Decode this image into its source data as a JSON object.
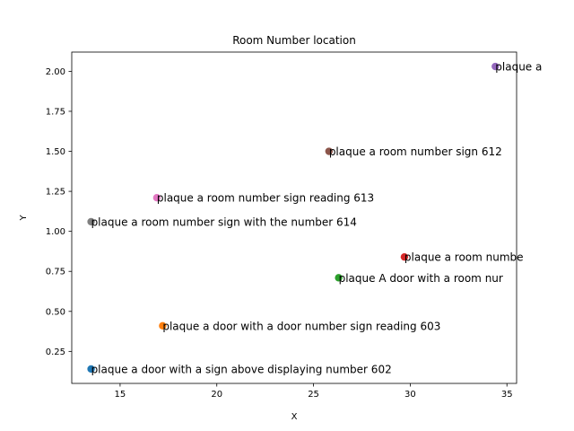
{
  "chart_data": {
    "type": "scatter",
    "title": "Room Number location",
    "xlabel": "X",
    "ylabel": "Y",
    "xlim": [
      12.5,
      35.5
    ],
    "ylim": [
      0.05,
      2.12
    ],
    "xticks": [
      15,
      20,
      25,
      30,
      35
    ],
    "xtick_labels": [
      "15",
      "20",
      "25",
      "30",
      "35"
    ],
    "yticks": [
      0.25,
      0.5,
      0.75,
      1.0,
      1.25,
      1.5,
      1.75,
      2.0
    ],
    "ytick_labels": [
      "0.25",
      "0.50",
      "0.75",
      "1.00",
      "1.25",
      "1.50",
      "1.75",
      "2.00"
    ],
    "grid": false,
    "legend": "none",
    "points": [
      {
        "x": 13.5,
        "y": 0.14,
        "label": "plaque   a door with a sign above displaying number 602",
        "color": "#1f77b4"
      },
      {
        "x": 17.2,
        "y": 0.41,
        "label": "plaque   a door with a door number sign reading 603",
        "color": "#ff7f0e"
      },
      {
        "x": 26.3,
        "y": 0.71,
        "label": "plaque   A door with a room nur",
        "color": "#2ca02c"
      },
      {
        "x": 29.7,
        "y": 0.84,
        "label": "plaque   a room numbe",
        "color": "#d62728"
      },
      {
        "x": 34.4,
        "y": 2.03,
        "label": "plaque   a",
        "color": "#9467bd"
      },
      {
        "x": 25.8,
        "y": 1.5,
        "label": "plaque   a room number sign 612",
        "color": "#8c564b"
      },
      {
        "x": 16.9,
        "y": 1.21,
        "label": "plaque   a room number sign reading 613",
        "color": "#e377c2"
      },
      {
        "x": 13.5,
        "y": 1.06,
        "label": "plaque   a room number sign with the number 614",
        "color": "#7f7f7f"
      }
    ]
  }
}
